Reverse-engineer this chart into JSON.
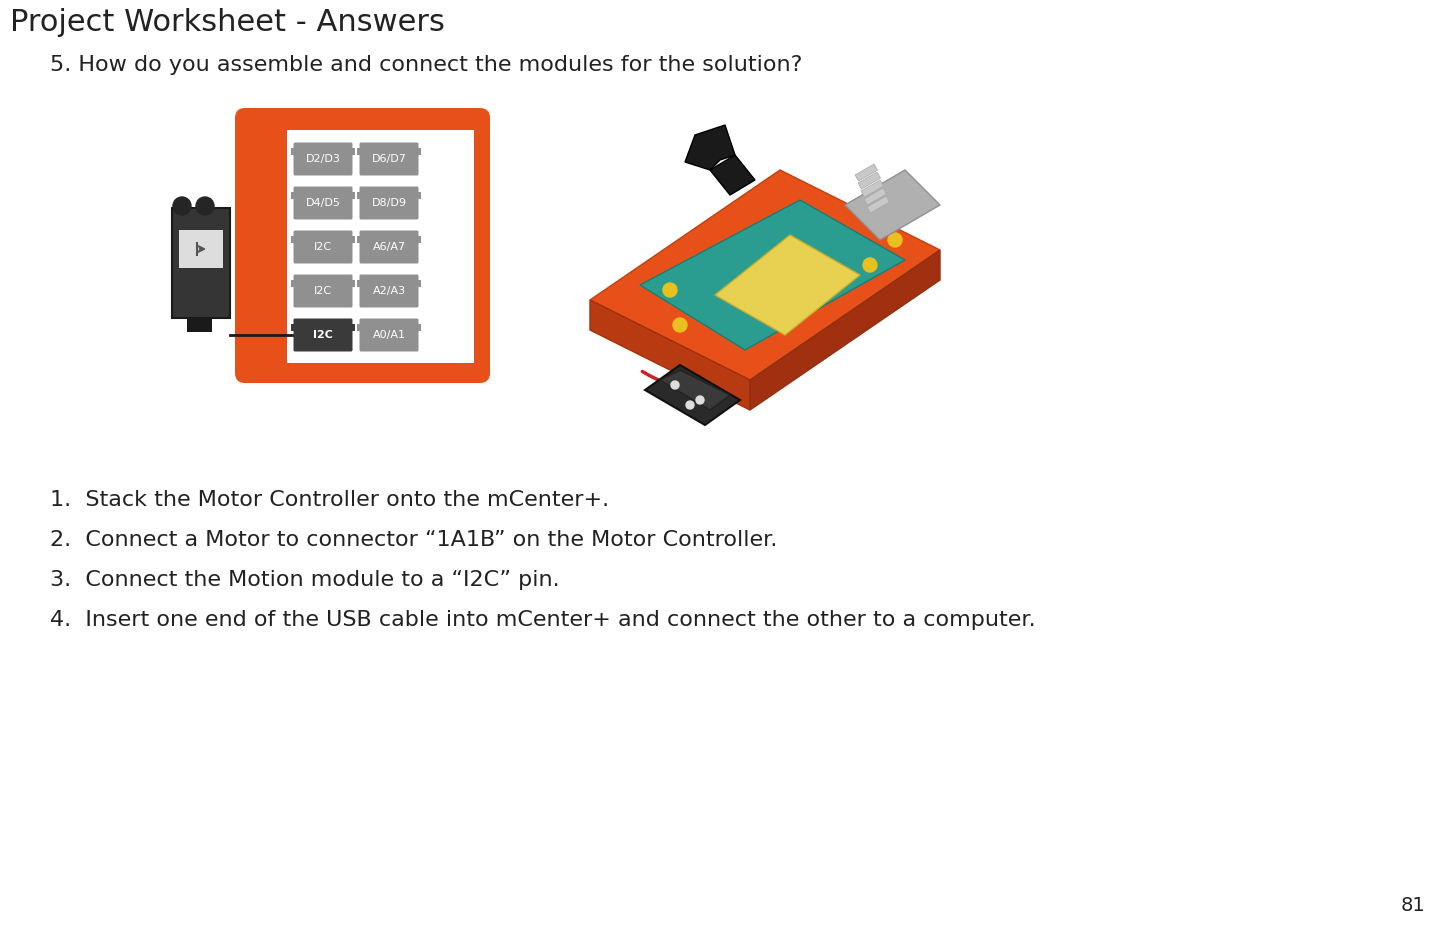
{
  "title": "Project Worksheet - Answers",
  "question": "5. How do you assemble and connect the modules for the solution?",
  "steps": [
    "1.  Stack the Motor Controller onto the mCenter+.",
    "2.  Connect a Motor to connector “1A1B” on the Motor Controller.",
    "3.  Connect the Motion module to a “I2C” pin.",
    "4.  Insert one end of the USB cable into mCenter+ and connect the other to a computer."
  ],
  "page_number": "81",
  "bg_color": "#ffffff",
  "title_color": "#222222",
  "orange_color": "#E8501A",
  "dark_gray": "#3a3a3a",
  "medium_gray": "#909090",
  "connector_labels_left": [
    "D2/D3",
    "D4/D5",
    "I2C",
    "I2C",
    "I2C"
  ],
  "connector_labels_right": [
    "D6/D7",
    "D8/D9",
    "A6/A7",
    "A2/A3",
    "A0/A1"
  ],
  "highlighted_index": 4,
  "title_fontsize": 22,
  "question_fontsize": 16,
  "step_fontsize": 16
}
